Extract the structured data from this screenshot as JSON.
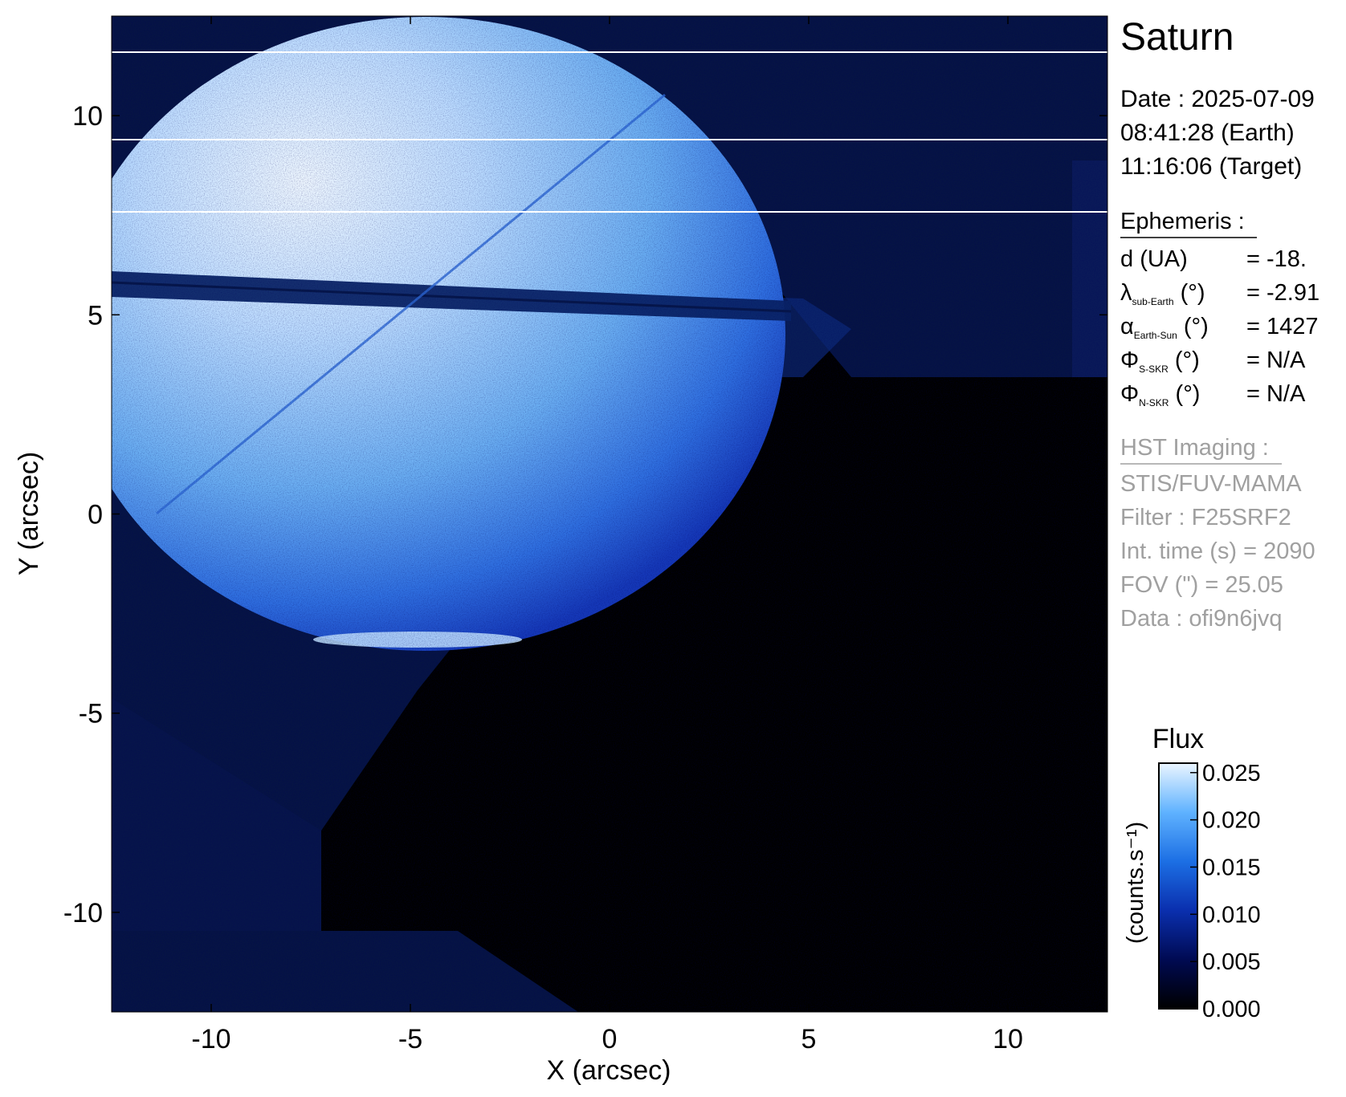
{
  "target": "Saturn",
  "date_lines": [
    "Date : 2025-07-09",
    "08:41:28 (Earth)",
    "11:16:06 (Target)"
  ],
  "ephemeris": {
    "heading": "Ephemeris :",
    "rows": [
      {
        "symbol": "d",
        "sub": "",
        "unit": " (UA)",
        "value": "= -18."
      },
      {
        "symbol": "λ",
        "sub": "sub-Earth",
        "unit": " (°)",
        "value": "= -2.91"
      },
      {
        "symbol": "α",
        "sub": "Earth-Sun",
        "unit": " (°)",
        "value": "= 1427"
      },
      {
        "symbol": "Φ",
        "sub": "S-SKR",
        "unit": " (°)",
        "value": "= N/A"
      },
      {
        "symbol": "Φ",
        "sub": "N-SKR",
        "unit": " (°)",
        "value": "= N/A"
      }
    ]
  },
  "imaging": {
    "heading": "HST Imaging :",
    "lines": [
      "STIS/FUV-MAMA",
      "Filter : F25SRF2",
      "Int. time (s) = 2090",
      "FOV (\") = 25.05",
      "Data : ofi9n6jvq"
    ]
  },
  "axes": {
    "xlabel": "X (arcsec)",
    "ylabel": "Y (arcsec)",
    "xticks": [
      -10,
      -5,
      0,
      5,
      10
    ],
    "yticks": [
      10,
      5,
      0,
      -5,
      -10
    ],
    "xlim": [
      -12.5,
      12.5
    ],
    "ylim": [
      -12.5,
      12.5
    ]
  },
  "colorbar": {
    "title": "Flux",
    "label": "(counts.s⁻¹)",
    "ticks": [
      "0.025",
      "0.020",
      "0.015",
      "0.010",
      "0.005",
      "0.000"
    ],
    "range": [
      0.0,
      0.026
    ]
  },
  "colors": {
    "background": "#000000",
    "planet_core": "#e8f4ff",
    "planet_mid": "#62a8f0",
    "planet_limb": "#1a4fd0",
    "ring": "#0a1d5a",
    "footprint": "#06103a",
    "secondary_text": "#a0a0a0"
  }
}
